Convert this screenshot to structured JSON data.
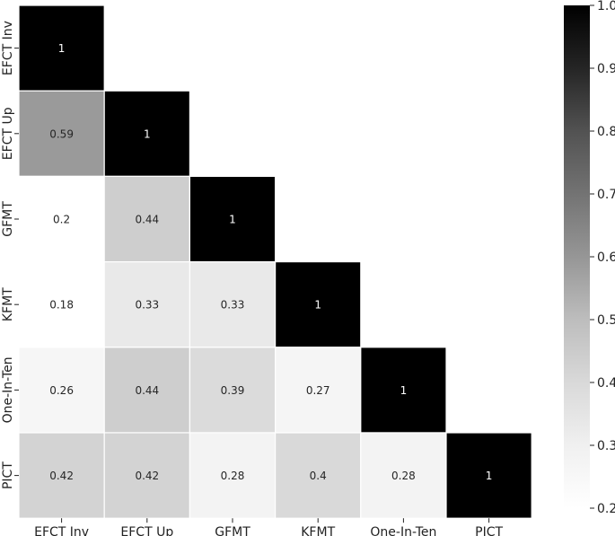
{
  "chart_data": {
    "type": "heatmap",
    "title": "",
    "xlabel": "",
    "ylabel": "",
    "x_labels": [
      "EFCT Inv",
      "EFCT Up",
      "GFMT",
      "KFMT",
      "One-In-Ten",
      "PICT"
    ],
    "y_labels": [
      "EFCT Inv",
      "EFCT Up",
      "GFMT",
      "KFMT",
      "One-In-Ten",
      "PICT"
    ],
    "lower_triangle_only": true,
    "values": [
      [
        1,
        null,
        null,
        null,
        null,
        null
      ],
      [
        0.59,
        1,
        null,
        null,
        null,
        null
      ],
      [
        0.2,
        0.44,
        1,
        null,
        null,
        null
      ],
      [
        0.18,
        0.33,
        0.33,
        1,
        null,
        null
      ],
      [
        0.26,
        0.44,
        0.39,
        0.27,
        1,
        null
      ],
      [
        0.42,
        0.42,
        0.28,
        0.4,
        0.28,
        1
      ]
    ],
    "value_labels": [
      [
        "1",
        "",
        "",
        "",
        "",
        ""
      ],
      [
        "0.59",
        "1",
        "",
        "",
        "",
        ""
      ],
      [
        "0.2",
        "0.44",
        "1",
        "",
        "",
        ""
      ],
      [
        "0.18",
        "0.33",
        "0.33",
        "1",
        "",
        ""
      ],
      [
        "0.26",
        "0.44",
        "0.39",
        "0.27",
        "1",
        ""
      ],
      [
        "0.42",
        "0.42",
        "0.28",
        "0.4",
        "0.28",
        "1"
      ]
    ],
    "colormap": "greys",
    "colorbar": {
      "range": [
        0.2,
        1.0
      ],
      "ticks": [
        0.2,
        0.3,
        0.4,
        0.5,
        0.6,
        0.7,
        0.8,
        0.9,
        1.0
      ],
      "tick_labels": [
        "0.2",
        "0.3",
        "0.4",
        "0.5",
        "0.6",
        "0.7",
        "0.8",
        "0.9",
        "1.0"
      ]
    }
  }
}
